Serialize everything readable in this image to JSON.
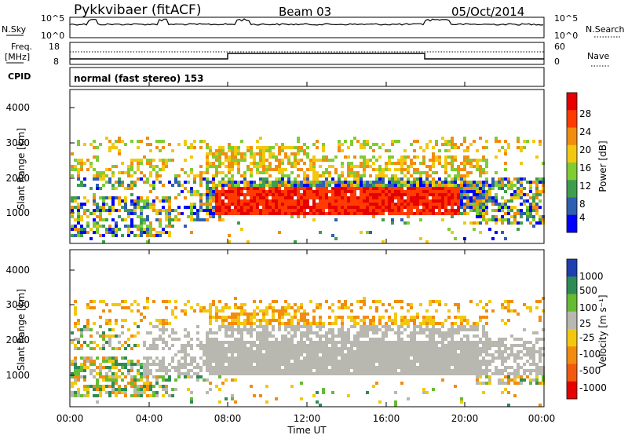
{
  "header": {
    "station": "Pykkvibaer (fitACF)",
    "beam": "Beam 03",
    "date": "05/Oct/2014"
  },
  "top_panels": {
    "nsky_label": "N.Sky",
    "nsky_ticks": [
      "10^5",
      "10^0"
    ],
    "nsearch_label": "N.Search",
    "nsearch_ticks": [
      "10^5",
      "10^0"
    ],
    "freq_label_1": "Freq.",
    "freq_label_2": "[MHz]",
    "freq_ticks": [
      "18",
      "8"
    ],
    "nave_label": "Nave",
    "nave_ticks": [
      "60",
      "0"
    ],
    "cpid_label": "CPID",
    "cpid_text": "normal (fast stereo) 153"
  },
  "chart_data": [
    {
      "type": "heatmap",
      "name": "power",
      "xlabel": "",
      "ylabel": "Slant Range [km]",
      "y_ticks": [
        "4000",
        "3000",
        "2000",
        "1000"
      ],
      "colorbar_label": "Power [dB]",
      "colorbar_ticks": [
        "28",
        "24",
        "20",
        "16",
        "12",
        "8",
        "4"
      ],
      "colors": [
        "#0000ff",
        "#2e5fb0",
        "#3f9e4e",
        "#7fcc33",
        "#f2c80f",
        "#f28c0f",
        "#ff3b00",
        "#e60000"
      ]
    },
    {
      "type": "heatmap",
      "name": "velocity",
      "xlabel": "Time UT",
      "ylabel": "Slant Range [km]",
      "y_ticks": [
        "4000",
        "3000",
        "2000",
        "1000"
      ],
      "x_ticks": [
        "00:00",
        "04:00",
        "08:00",
        "12:00",
        "16:00",
        "20:00",
        "00:00"
      ],
      "colorbar_label": "Velocity [m s⁻¹]",
      "colorbar_ticks": [
        "1000",
        "500",
        "100",
        "25",
        "-25",
        "-100",
        "-500",
        "-1000"
      ],
      "colors": [
        "#1f3fb0",
        "#2e8b57",
        "#66bb33",
        "#b8b8b0",
        "#f2c80f",
        "#f28c0f",
        "#f25a0f",
        "#e60000"
      ]
    }
  ]
}
